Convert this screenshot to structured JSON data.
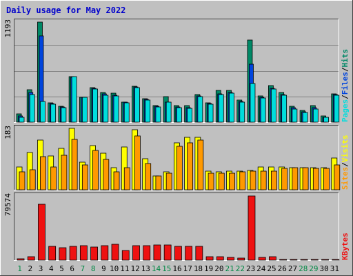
{
  "title": "Daily usage for May 2022",
  "colors": {
    "background": "#c0c0c0",
    "title_text": "#0000cc",
    "hits": "#008866",
    "files": "#0044dd",
    "pages": "#00dddd",
    "visits": "#ffff00",
    "sites": "#ff9900",
    "kbytes": "#ee1111",
    "weekend_day": "#008844",
    "weekday": "#000000"
  },
  "legend": {
    "top": {
      "pages": "Pages",
      "files": "Files",
      "hits": "Hits",
      "sep": "/"
    },
    "middle": {
      "sites": "Sites",
      "visits": "Visits",
      "sep": "/"
    },
    "bottom": {
      "kbytes": "KBytes"
    }
  },
  "chart_data": [
    {
      "type": "bar",
      "panel": "hits-files-pages",
      "max_label": "1193",
      "ylim": [
        0,
        1193
      ],
      "categories": [
        "1",
        "2",
        "3",
        "4",
        "5",
        "6",
        "7",
        "8",
        "9",
        "10",
        "11",
        "12",
        "13",
        "14",
        "15",
        "16",
        "17",
        "18",
        "19",
        "20",
        "21",
        "22",
        "23",
        "24",
        "25",
        "26",
        "27",
        "28",
        "29",
        "30",
        "31"
      ],
      "series": [
        {
          "name": "Hits",
          "values": [
            100,
            385,
            1193,
            230,
            190,
            545,
            300,
            410,
            350,
            345,
            240,
            430,
            280,
            200,
            305,
            200,
            200,
            325,
            230,
            375,
            375,
            260,
            980,
            315,
            440,
            350,
            190,
            140,
            195,
            70,
            335
          ]
        },
        {
          "name": "Files",
          "values": [
            75,
            350,
            1030,
            225,
            180,
            535,
            300,
            400,
            335,
            320,
            235,
            420,
            270,
            190,
            240,
            180,
            170,
            310,
            225,
            340,
            350,
            250,
            690,
            300,
            400,
            330,
            170,
            120,
            170,
            60,
            325
          ]
        },
        {
          "name": "Pages",
          "values": [
            60,
            330,
            250,
            215,
            170,
            540,
            295,
            395,
            320,
            315,
            230,
            415,
            265,
            185,
            240,
            170,
            165,
            305,
            215,
            330,
            345,
            240,
            460,
            290,
            395,
            320,
            160,
            115,
            160,
            55,
            320
          ]
        }
      ]
    },
    {
      "type": "bar",
      "panel": "visits-sites",
      "max_label": "183",
      "ylim": [
        0,
        183
      ],
      "categories": [
        "1",
        "2",
        "3",
        "4",
        "5",
        "6",
        "7",
        "8",
        "9",
        "10",
        "11",
        "12",
        "13",
        "14",
        "15",
        "16",
        "17",
        "18",
        "19",
        "20",
        "21",
        "22",
        "23",
        "24",
        "25",
        "26",
        "27",
        "28",
        "29",
        "30",
        "31"
      ],
      "series": [
        {
          "name": "Visits",
          "values": [
            68,
            112,
            148,
            101,
            123,
            183,
            82,
            132,
            108,
            66,
            127,
            178,
            92,
            42,
            54,
            140,
            157,
            157,
            56,
            54,
            55,
            55,
            58,
            68,
            68,
            68,
            66,
            66,
            65,
            65,
            95
          ]
        },
        {
          "name": "Sites",
          "values": [
            54,
            60,
            98,
            67,
            102,
            150,
            75,
            117,
            90,
            54,
            65,
            160,
            79,
            42,
            49,
            130,
            140,
            148,
            49,
            49,
            49,
            53,
            55,
            56,
            55,
            64,
            65,
            66,
            64,
            64,
            75
          ]
        }
      ]
    },
    {
      "type": "bar",
      "panel": "kbytes",
      "max_label": "79574",
      "ylim": [
        0,
        79574
      ],
      "categories": [
        "1",
        "2",
        "3",
        "4",
        "5",
        "6",
        "7",
        "8",
        "9",
        "10",
        "11",
        "12",
        "13",
        "14",
        "15",
        "16",
        "17",
        "18",
        "19",
        "20",
        "21",
        "22",
        "23",
        "24",
        "25",
        "26",
        "27",
        "28",
        "29",
        "30",
        "31"
      ],
      "series": [
        {
          "name": "KBytes",
          "values": [
            2100,
            4500,
            69300,
            17100,
            15300,
            17100,
            18000,
            16200,
            18000,
            19800,
            11700,
            18000,
            18000,
            18900,
            18900,
            17100,
            17100,
            17100,
            4500,
            4200,
            3600,
            2700,
            79574,
            3300,
            3900,
            800,
            800,
            700,
            700,
            700,
            700
          ]
        }
      ]
    }
  ],
  "weekend_days": [
    1,
    7,
    8,
    14,
    15,
    21,
    22,
    28,
    29
  ]
}
